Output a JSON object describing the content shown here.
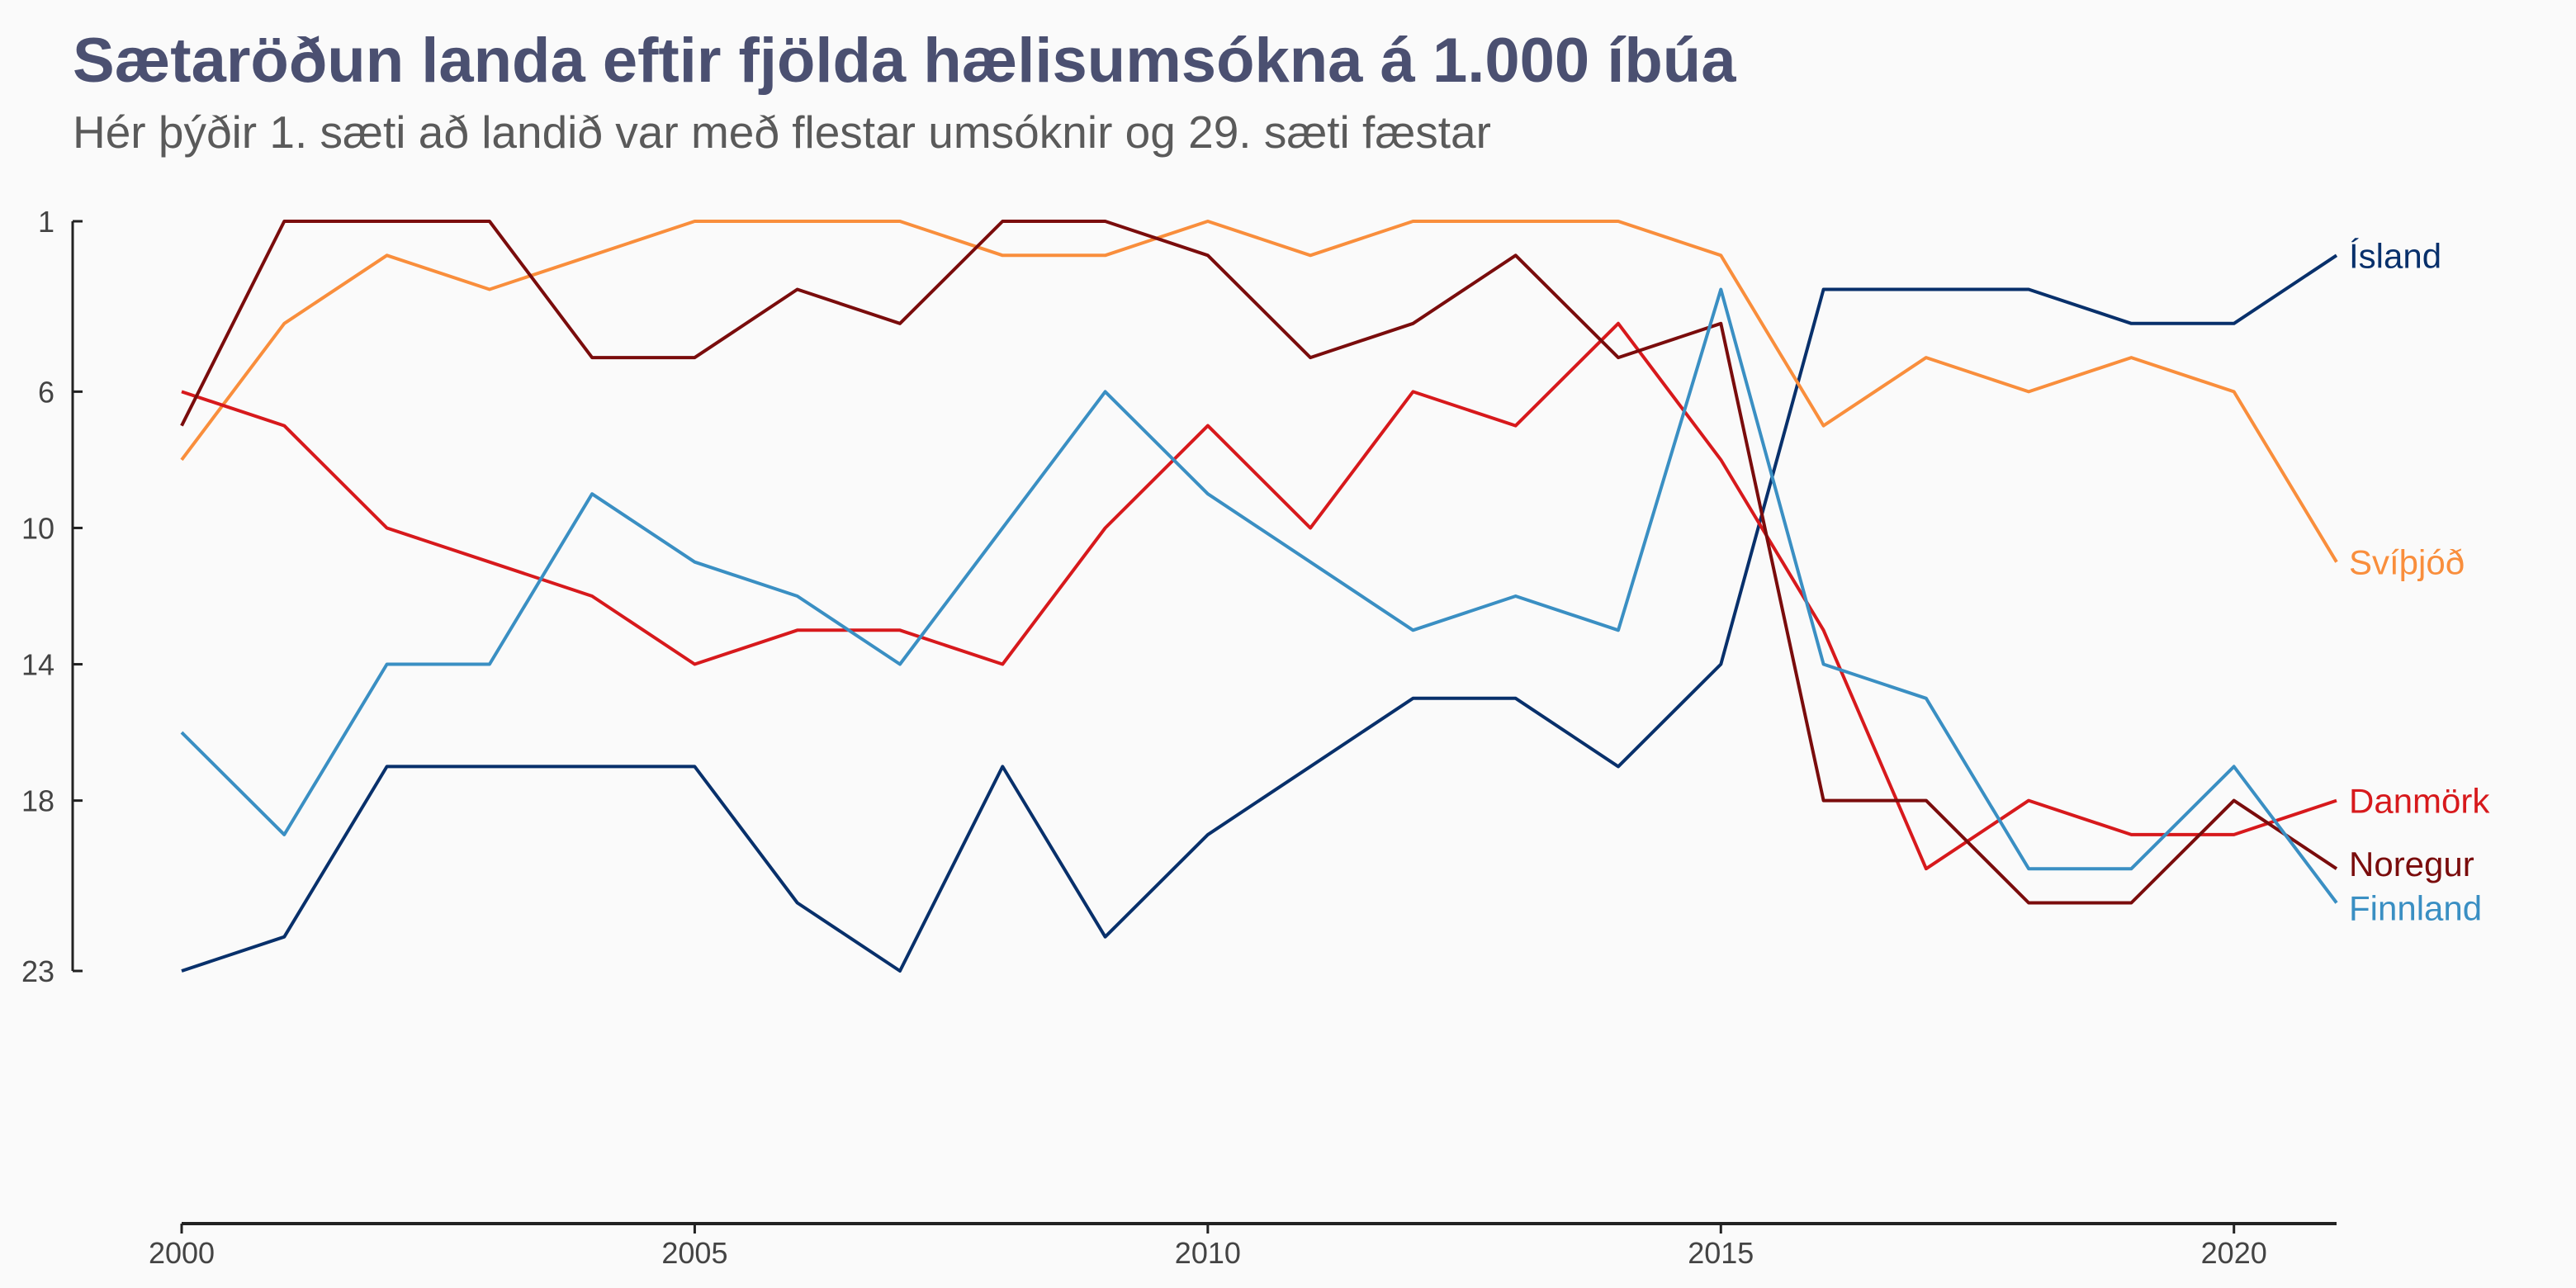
{
  "chart_data": {
    "type": "line",
    "title": "Sætaröðun landa eftir fjölda hælisumsókna á 1.000 íbúa",
    "subtitle": "Hér þýðir 1. sæti að landið var með flestar umsóknir og 29. sæti fæstar",
    "xlabel": "",
    "ylabel": "",
    "y_reversed": true,
    "ylim": [
      1,
      23
    ],
    "xlim": [
      2000,
      2021
    ],
    "x_ticks": [
      2000,
      2005,
      2010,
      2015,
      2020
    ],
    "y_ticks": [
      1,
      6,
      10,
      14,
      18,
      23
    ],
    "grid": false,
    "legend": "direct labels at right end of lines",
    "x": [
      2000,
      2001,
      2002,
      2003,
      2004,
      2005,
      2006,
      2007,
      2008,
      2009,
      2010,
      2011,
      2012,
      2013,
      2014,
      2015,
      2016,
      2017,
      2018,
      2019,
      2020,
      2021
    ],
    "series": [
      {
        "name": "Ísland",
        "color": "#08306b",
        "values": [
          23,
          22,
          17,
          17,
          17,
          17,
          21,
          23,
          17,
          22,
          19,
          17,
          15,
          15,
          17,
          14,
          3,
          3,
          3,
          4,
          4,
          2
        ]
      },
      {
        "name": "Svíþjóð",
        "color": "#f98e3c",
        "values": [
          8,
          4,
          2,
          3,
          2,
          1,
          1,
          1,
          2,
          2,
          1,
          2,
          1,
          1,
          1,
          2,
          7,
          5,
          6,
          5,
          6,
          11
        ]
      },
      {
        "name": "Danmörk",
        "color": "#d7191c",
        "values": [
          6,
          7,
          10,
          11,
          12,
          14,
          13,
          13,
          14,
          10,
          7,
          10,
          6,
          7,
          4,
          8,
          13,
          20,
          18,
          19,
          19,
          18
        ]
      },
      {
        "name": "Noregur",
        "color": "#7a0c0c",
        "values": [
          7,
          1,
          1,
          1,
          5,
          5,
          3,
          4,
          1,
          1,
          2,
          5,
          4,
          2,
          5,
          4,
          18,
          18,
          21,
          21,
          18,
          20
        ]
      },
      {
        "name": "Finnland",
        "color": "#3a8fc3",
        "values": [
          16,
          19,
          14,
          14,
          9,
          11,
          12,
          14,
          10,
          6,
          9,
          11,
          13,
          12,
          13,
          3,
          14,
          15,
          20,
          20,
          17,
          21
        ]
      }
    ]
  }
}
